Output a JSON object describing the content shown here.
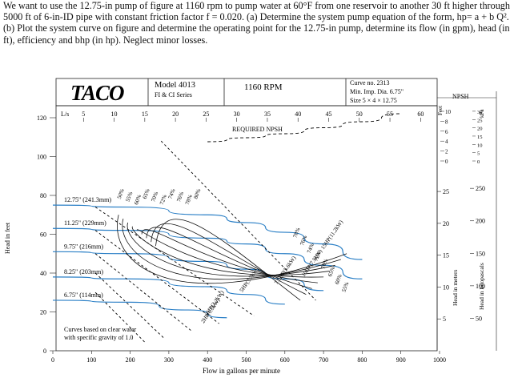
{
  "problem": {
    "text": "We want to use the 12.75-in pump of figure at 1160 rpm to pump water at 60°F from one reservoir to another 30 ft higher through 5000 ft of 6-in-ID pipe with constant friction factor f = 0.020. (a) Determine the system pump equation of the form, hp= a + b Q². (b) Plot the system curve on figure and determine the operating point for the 12.75-in pump, determine its flow (in gpm), head (in ft), efficiency and bhp (in hp). Neglect minor losses."
  },
  "header": {
    "logo": "TACO",
    "model": "Model 4013",
    "series": "FI & CI Series",
    "rpm": "1160 RPM",
    "curve_no": "Curve no. 2313",
    "min_imp": "Min. Imp. Dia. 6.75\"",
    "size": "Size 5 × 4 × 12.75"
  },
  "chart_data": {
    "type": "line",
    "title": "",
    "xlabel": "Flow in gallons per minute",
    "ylabel": "Head in feet",
    "xlim": [
      0,
      1000
    ],
    "ylim": [
      0,
      120
    ],
    "x_ticks": [
      0,
      100,
      200,
      300,
      400,
      500,
      600,
      700,
      800,
      900,
      1000
    ],
    "y_ticks": [
      0,
      20,
      40,
      60,
      80,
      100,
      120
    ],
    "top_axis": {
      "label": "L/s",
      "ticks": [
        5,
        10,
        15,
        20,
        25,
        30,
        35,
        40,
        45,
        50,
        55,
        60
      ]
    },
    "right_axes": {
      "npsh_label": "NPSH",
      "npsh_ticks_ft": [
        0,
        2,
        4,
        6,
        8,
        10
      ],
      "npsh_kpa_label": "kPa",
      "npsh_kpa_ticks": [
        0,
        5,
        10,
        15,
        20,
        25,
        30
      ],
      "meters_label": "Head in meters",
      "meters_ticks": [
        5,
        10,
        15,
        20,
        25
      ],
      "kpa_label": "Head in kilopascals",
      "kpa_ticks": [
        50,
        100,
        150,
        200,
        250
      ]
    },
    "impeller_curves": [
      {
        "name": "12.75\" (241.3mm)",
        "x": [
          0,
          200,
          400,
          500,
          600,
          700,
          800
        ],
        "y": [
          75,
          74,
          70,
          66,
          61,
          55,
          47
        ]
      },
      {
        "name": "11.25\" (229mm)",
        "x": [
          0,
          200,
          400,
          500,
          600,
          700,
          800
        ],
        "y": [
          63,
          62,
          58,
          55,
          50,
          44,
          37
        ]
      },
      {
        "name": "9.75\" (216mm)",
        "x": [
          0,
          200,
          400,
          500,
          600,
          700
        ],
        "y": [
          51,
          50,
          46,
          42,
          37,
          31
        ]
      },
      {
        "name": "8.25\" (203mm)",
        "x": [
          0,
          200,
          400,
          500,
          600
        ],
        "y": [
          38,
          37,
          33,
          29,
          24
        ]
      },
      {
        "name": "6.75\" (114mm)",
        "x": [
          0,
          200,
          350,
          450
        ],
        "y": [
          26,
          25,
          21,
          17
        ]
      }
    ],
    "npsh_curve": {
      "label": "REQUIRED NPSH",
      "x": [
        400,
        500,
        600,
        700,
        800,
        900
      ],
      "y_ft": [
        3,
        4,
        5,
        6.5,
        8,
        10
      ]
    },
    "efficiency_labels": [
      "50%",
      "55%",
      "60%",
      "65%",
      "70%",
      "72%",
      "74%",
      "76%",
      "78%",
      "80%"
    ],
    "right_efficiency_labels": [
      "78%",
      "76%",
      "74%",
      "72%",
      "70%",
      "65%",
      "60%",
      "55%"
    ],
    "power_labels": [
      "15HP(11.2kW)",
      "10HP(7.5kW)",
      "7.5HP(5.6kW)",
      "5HP(3.7kW)",
      "3HP(2.2kW)",
      "2HP(1.5kW)"
    ],
    "note": "Curves based on clear water with specific gravity of 1.0"
  }
}
